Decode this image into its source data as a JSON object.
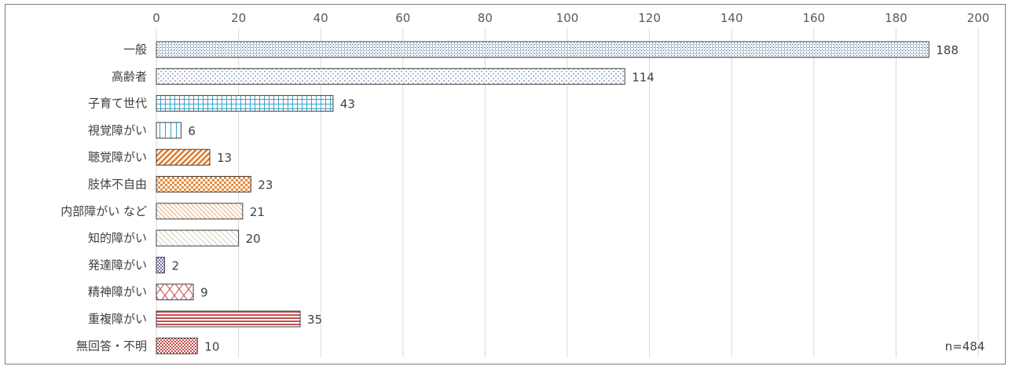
{
  "chart_data": {
    "type": "bar",
    "orientation": "horizontal",
    "categories": [
      "一般",
      "高齢者",
      "子育て世代",
      "視覚障がい",
      "聴覚障がい",
      "肢体不自由",
      "内部障がい など",
      "知的障がい",
      "発達障がい",
      "精神障がい",
      "重複障がい",
      "無回答・不明"
    ],
    "values": [
      188,
      114,
      43,
      6,
      13,
      23,
      21,
      20,
      2,
      9,
      35,
      10
    ],
    "xlim": [
      0,
      200
    ],
    "xticks": [
      0,
      20,
      40,
      60,
      80,
      100,
      120,
      140,
      160,
      180,
      200
    ],
    "tick_labels": [
      "0",
      "20",
      "40",
      "60",
      "80",
      "100",
      "120",
      "140",
      "160",
      "180",
      "200"
    ],
    "value_labels": [
      "188",
      "114",
      "43",
      "6",
      "13",
      "23",
      "21",
      "20",
      "2",
      "9",
      "35",
      "10"
    ],
    "axis_position": "top",
    "grid": true,
    "note": "n=484",
    "bar_colors": [
      "#2f4f8a",
      "#2f4f8a",
      "#3aa0c8",
      "#3aa0c8",
      "#e07a2a",
      "#e88a3c",
      "#e07a2a",
      "#8aa86a",
      "#7a6aa8",
      "#c0504d",
      "#c0504d",
      "#c0504d"
    ]
  }
}
